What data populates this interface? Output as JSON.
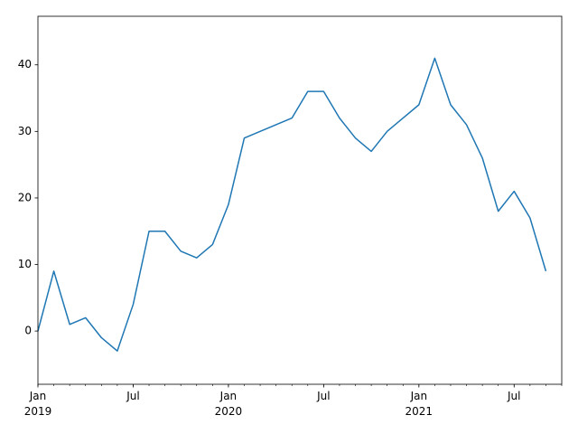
{
  "chart_data": {
    "type": "line",
    "x": [
      "2019-01",
      "2019-02",
      "2019-03",
      "2019-04",
      "2019-05",
      "2019-06",
      "2019-07",
      "2019-08",
      "2019-09",
      "2019-10",
      "2019-11",
      "2019-12",
      "2020-01",
      "2020-02",
      "2020-03",
      "2020-04",
      "2020-05",
      "2020-06",
      "2020-07",
      "2020-08",
      "2020-09",
      "2020-10",
      "2020-11",
      "2020-12",
      "2021-01",
      "2021-02",
      "2021-03",
      "2021-04",
      "2021-05",
      "2021-06",
      "2021-07",
      "2021-08",
      "2021-09"
    ],
    "values": [
      0,
      9,
      1,
      2,
      -1,
      -3,
      4,
      15,
      15,
      12,
      11,
      13,
      19,
      29,
      30,
      31,
      32,
      36,
      36,
      32,
      29,
      27,
      30,
      32,
      34,
      41,
      34,
      31,
      26,
      18,
      21,
      17,
      9
    ],
    "color": "#1f77b4",
    "xlim": [
      "2019-01",
      "2021-10"
    ],
    "xticks": [
      {
        "value": "2019-01",
        "label": "Jan\n2019"
      },
      {
        "value": "2019-07",
        "label": "Jul"
      },
      {
        "value": "2020-01",
        "label": "Jan\n2020"
      },
      {
        "value": "2020-07",
        "label": "Jul"
      },
      {
        "value": "2021-01",
        "label": "Jan\n2021"
      },
      {
        "value": "2021-07",
        "label": "Jul"
      }
    ],
    "ylim": [
      -8.0,
      47.3
    ],
    "yticks": [
      0,
      10,
      20,
      30,
      40
    ],
    "grid": false
  }
}
